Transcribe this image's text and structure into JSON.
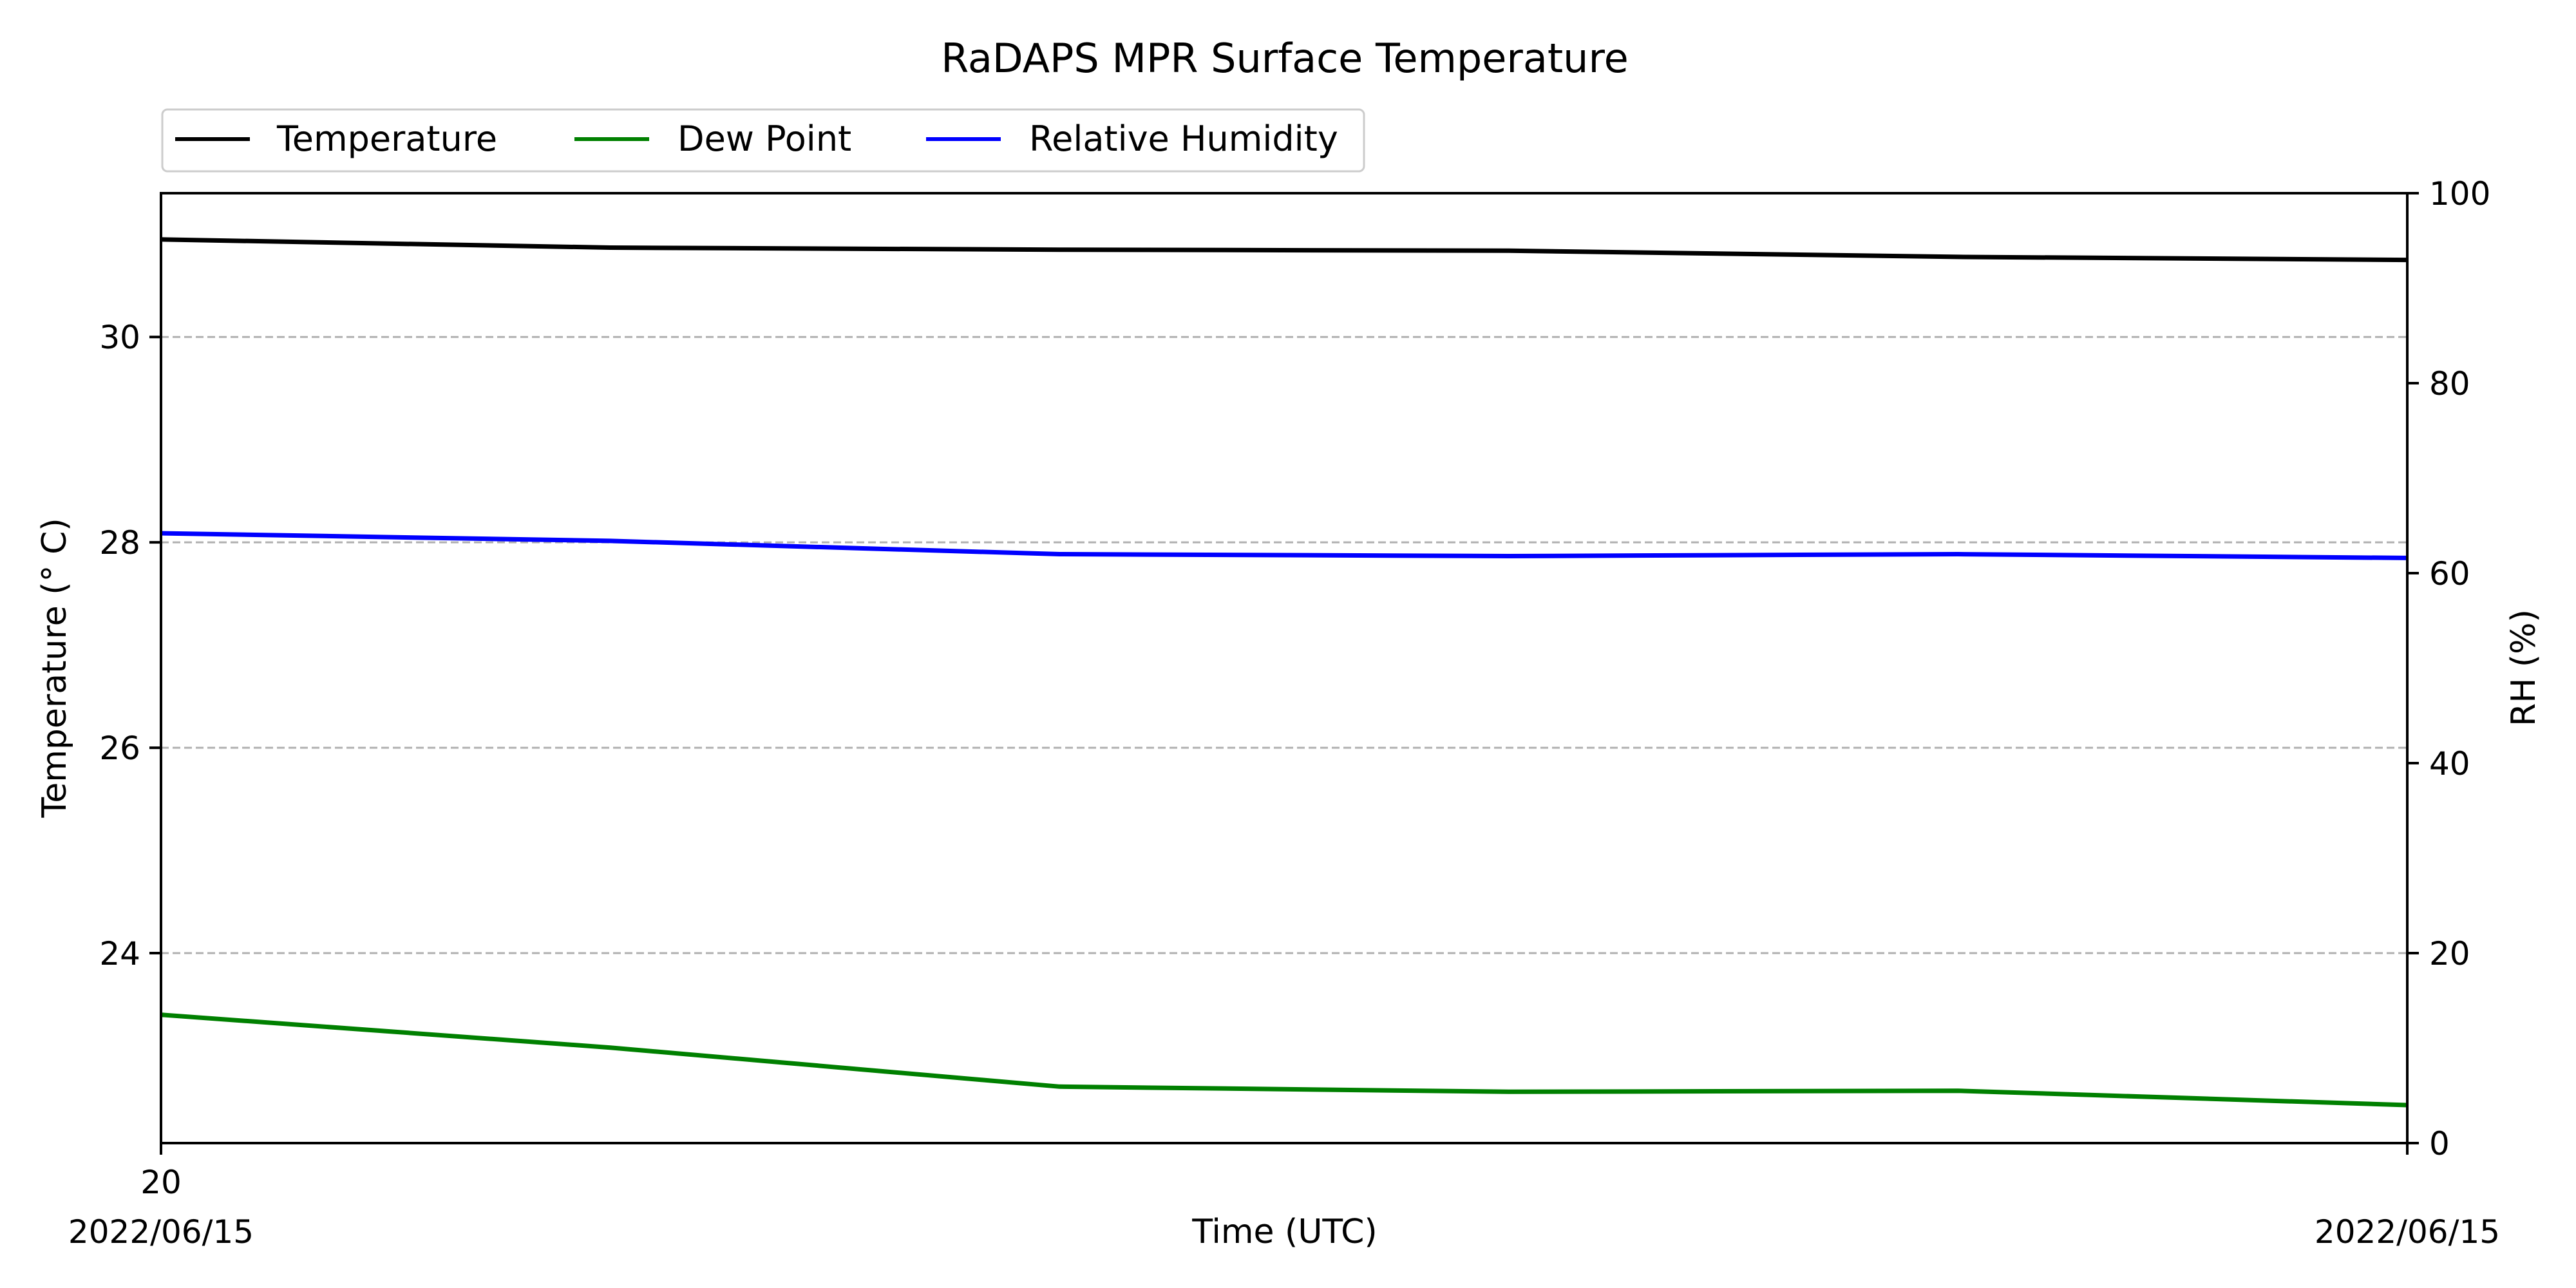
{
  "chart_data": {
    "type": "line",
    "title": "RaDAPS MPR Surface Temperature",
    "xlabel": "Time (UTC)",
    "ylabel": "Temperature ($^\\circ$C)",
    "ylabel_display": "Temperature (° C)",
    "y2label": "RH (%)",
    "x": [
      0,
      1,
      2,
      3,
      4,
      5
    ],
    "xlim": [
      0,
      5
    ],
    "x_ticks": [
      {
        "x": 0,
        "label": "20",
        "sublabel": "2022/06/15"
      },
      {
        "x": 5,
        "label": "",
        "sublabel": "2022/06/15"
      }
    ],
    "ylim": [
      22.15,
      31.4
    ],
    "y_ticks": [
      24,
      26,
      28,
      30
    ],
    "y2lim": [
      0,
      100
    ],
    "y2_ticks": [
      0,
      20,
      40,
      60,
      80,
      100
    ],
    "grid": "horizontal dashed",
    "legend_position": "upper-left, above plot",
    "series": [
      {
        "name": "Temperature",
        "axis": "left",
        "color": "#000000",
        "values": [
          30.95,
          30.87,
          30.85,
          30.84,
          30.78,
          30.75
        ]
      },
      {
        "name": "Dew Point",
        "axis": "left",
        "color": "#008000",
        "values": [
          23.4,
          23.08,
          22.7,
          22.65,
          22.66,
          22.52
        ]
      },
      {
        "name": "Relative Humidity",
        "axis": "right",
        "color": "#0000ff",
        "values": [
          64.2,
          63.4,
          62.0,
          61.8,
          62.0,
          61.6
        ]
      }
    ]
  }
}
